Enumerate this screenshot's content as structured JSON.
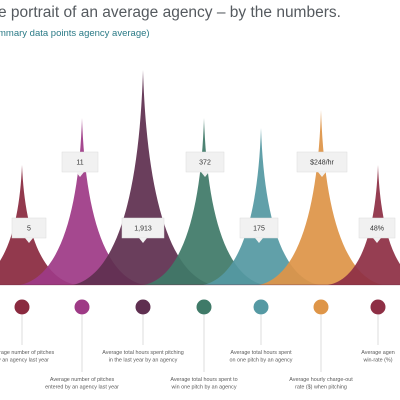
{
  "title": "e portrait of an average agency – by the numbers.",
  "subtitle": "mmary data points agency average)",
  "chart_data": {
    "type": "area",
    "title": "e portrait of an average agency – by the numbers.",
    "subtitle": "mmary data points agency average)",
    "peaks": [
      {
        "label": "5",
        "value": 5,
        "color": "#8a2a3f",
        "description": [
          "Average number of pitches",
          "by an agency last year"
        ]
      },
      {
        "label": "11",
        "value": 11,
        "color": "#9e3a86",
        "description": [
          "Average number of pitches",
          "entered by an agency last year"
        ]
      },
      {
        "label": "1,913",
        "value": 1913,
        "color": "#5f2f50",
        "description": [
          "Average total hours spent pitching",
          "in the last year by an agency"
        ]
      },
      {
        "label": "372",
        "value": 372,
        "color": "#3f7a68",
        "description": [
          "Average total hours spent to",
          "win one pitch by an agency"
        ]
      },
      {
        "label": "175",
        "value": 175,
        "color": "#5599a3",
        "description": [
          "Average total hours spent",
          "on one pitch by an agency"
        ]
      },
      {
        "label": "$248/hr",
        "value": 248,
        "color": "#de9548",
        "description": [
          "Average hourly charge-out",
          "rate ($) when pitching"
        ]
      },
      {
        "label": "48%",
        "value": 48,
        "color": "#8e2f45",
        "description": [
          "Average agen",
          "win-rate (%)"
        ]
      }
    ]
  }
}
